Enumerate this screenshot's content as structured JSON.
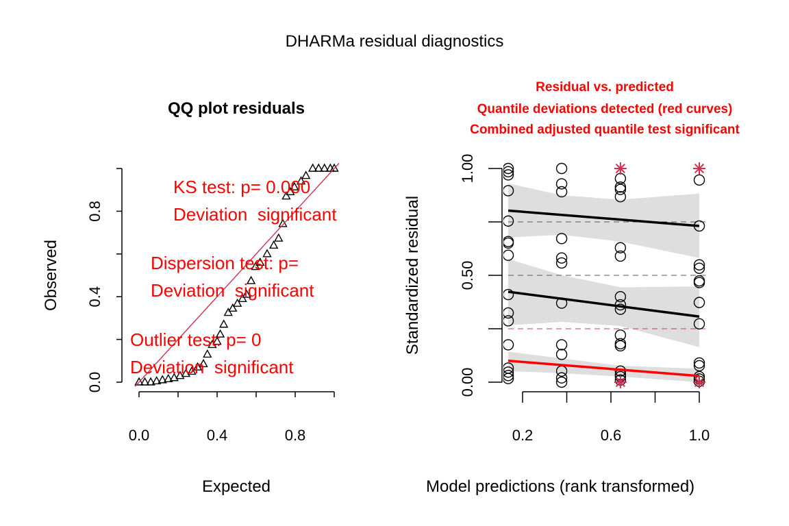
{
  "title": "DHARMa residual diagnostics",
  "chart_data": [
    {
      "type": "scatter",
      "title": "QQ plot residuals",
      "xlabel": "Expected",
      "ylabel": "Observed",
      "xlim": [
        0,
        1
      ],
      "ylim": [
        0,
        1
      ],
      "x_ticks": [
        "0.0",
        "0.4",
        "0.8"
      ],
      "y_ticks": [
        "0.0",
        "0.4",
        "0.8"
      ],
      "marker": "triangle",
      "reference_line_color": "#d03050",
      "points": [
        [
          0.0,
          0.0
        ],
        [
          0.03,
          0.0
        ],
        [
          0.06,
          0.0
        ],
        [
          0.09,
          0.005
        ],
        [
          0.12,
          0.01
        ],
        [
          0.15,
          0.015
        ],
        [
          0.18,
          0.02
        ],
        [
          0.21,
          0.03
        ],
        [
          0.24,
          0.04
        ],
        [
          0.27,
          0.05
        ],
        [
          0.3,
          0.07
        ],
        [
          0.33,
          0.085
        ],
        [
          0.35,
          0.13
        ],
        [
          0.375,
          0.175
        ],
        [
          0.4,
          0.19
        ],
        [
          0.416,
          0.224
        ],
        [
          0.434,
          0.27
        ],
        [
          0.457,
          0.325
        ],
        [
          0.48,
          0.345
        ],
        [
          0.504,
          0.368
        ],
        [
          0.53,
          0.39
        ],
        [
          0.551,
          0.41
        ],
        [
          0.574,
          0.474
        ],
        [
          0.597,
          0.54
        ],
        [
          0.62,
          0.56
        ],
        [
          0.656,
          0.6
        ],
        [
          0.69,
          0.64
        ],
        [
          0.715,
          0.673
        ],
        [
          0.737,
          0.741
        ],
        [
          0.754,
          0.87
        ],
        [
          0.775,
          0.89
        ],
        [
          0.796,
          0.913
        ],
        [
          0.83,
          0.94
        ],
        [
          0.855,
          0.966
        ],
        [
          0.89,
          1.0
        ],
        [
          0.92,
          1.0
        ],
        [
          0.95,
          1.0
        ],
        [
          0.98,
          1.0
        ],
        [
          1.0,
          1.0
        ]
      ],
      "annotations": [
        {
          "line1": "KS test: p= 0.000",
          "line2": "Deviation  significant"
        },
        {
          "line1": "Dispersion test: p=",
          "line2": "Deviation  significant"
        },
        {
          "line1": "Outlier test: p= 0",
          "line2": "Deviation  significant"
        }
      ],
      "annotation_color": "#ff0000"
    },
    {
      "type": "scatter",
      "title_lines": [
        "Residual vs. predicted",
        "Quantile deviations detected (red curves)",
        "Combined adjusted quantile test significant"
      ],
      "title_color": "#ff0000",
      "xlabel": "Model predictions (rank transformed)",
      "ylabel": "Standardized residual",
      "ylim": [
        0,
        1
      ],
      "x_ticks": [
        "0.2",
        "0.6",
        "1.0"
      ],
      "y_ticks": [
        "0.00",
        "0.50",
        "1.00"
      ],
      "dashed_quantiles": [
        0.25,
        0.5,
        0.75
      ],
      "groups": [
        {
          "x": 0.135,
          "y": [
            1.0,
            0.985,
            0.97,
            0.896,
            0.754,
            0.658,
            0.651,
            0.594,
            0.41,
            0.324,
            0.287,
            0.175,
            0.066,
            0.047,
            0.031,
            0.017
          ]
        },
        {
          "x": 0.377,
          "y": [
            1.0,
            0.928,
            0.891,
            0.672,
            0.581,
            0.558,
            0.37,
            0.175,
            0.13,
            0.052,
            0.02,
            0.0
          ]
        },
        {
          "x": 0.643,
          "y": [
            0.953,
            0.913,
            0.902,
            0.868,
            0.629,
            0.59,
            0.4,
            0.362,
            0.341,
            0.22,
            0.18,
            0.17,
            0.052,
            0.036,
            0.026,
            0.01
          ]
        },
        {
          "x": 1.0,
          "y": [
            0.946,
            0.731,
            0.549,
            0.533,
            0.474,
            0.466,
            0.373,
            0.273,
            0.09,
            0.077,
            0.026,
            0.015,
            0.004
          ]
        }
      ],
      "outliers": [
        [
          0.643,
          1.0
        ],
        [
          0.643,
          0.0
        ],
        [
          1.0,
          1.0
        ],
        [
          1.0,
          0.0
        ]
      ],
      "outlier_color": "#d03050",
      "quantile_fits": [
        {
          "quantile": 0.75,
          "color": "#000000",
          "line": [
            [
              0.135,
              0.803
            ],
            [
              1.0,
              0.731
            ]
          ],
          "band_x": [
            0.135,
            0.377,
            0.643,
            1.0
          ],
          "band_upper": [
            0.93,
            0.875,
            0.854,
            0.883
          ],
          "band_lower": [
            0.677,
            0.69,
            0.658,
            0.581
          ]
        },
        {
          "quantile": 0.5,
          "color": "#000000",
          "line": [
            [
              0.135,
              0.423
            ],
            [
              1.0,
              0.307
            ]
          ],
          "band_x": [
            0.135,
            0.377,
            0.643,
            1.0
          ],
          "band_upper": [
            0.576,
            0.501,
            0.444,
            0.448
          ],
          "band_lower": [
            0.266,
            0.282,
            0.263,
            0.164
          ]
        },
        {
          "quantile": 0.25,
          "color": "#ff0000",
          "line": [
            [
              0.135,
              0.1
            ],
            [
              1.0,
              0.029
            ]
          ],
          "band_x": [
            0.135,
            0.377,
            0.643,
            1.0
          ],
          "band_upper": [
            0.143,
            0.111,
            0.077,
            0.063
          ],
          "band_lower": [
            0.052,
            0.042,
            0.026,
            0.0
          ]
        }
      ]
    }
  ]
}
